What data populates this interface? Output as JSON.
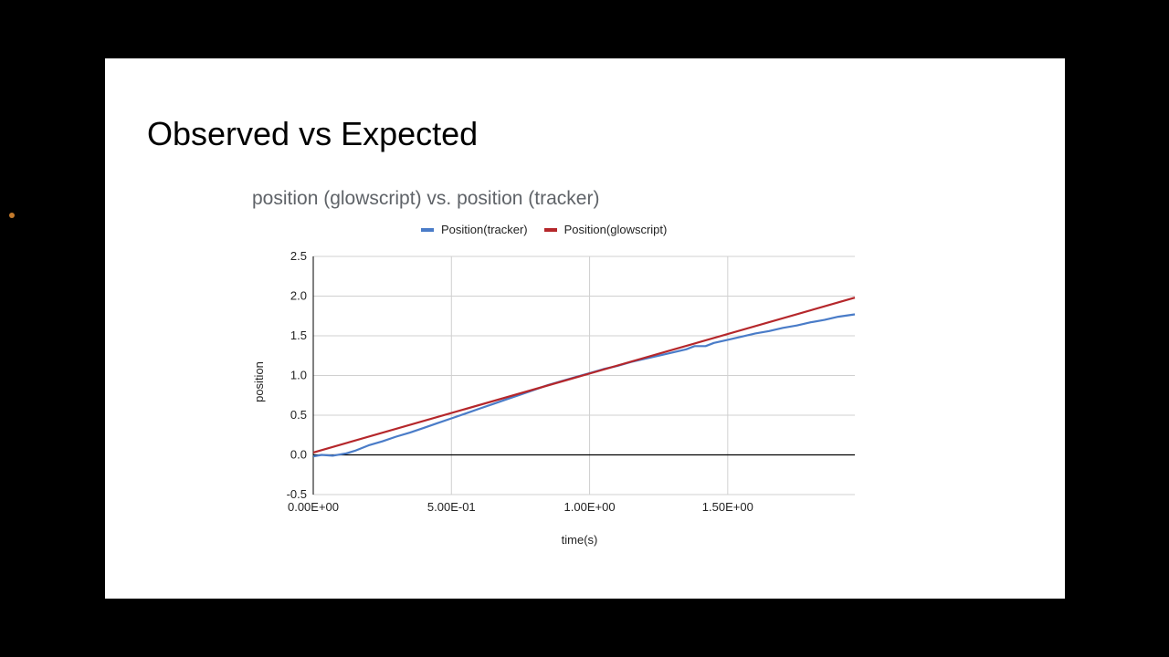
{
  "slide": {
    "title": "Observed vs Expected"
  },
  "chart_data": {
    "type": "line",
    "title": "position (glowscript) vs. position (tracker)",
    "xlabel": "time(s)",
    "ylabel": "position",
    "xlim": [
      0,
      1.96
    ],
    "ylim": [
      -0.5,
      2.5
    ],
    "x_ticks": [
      {
        "value": 0,
        "label": "0.00E+00"
      },
      {
        "value": 0.5,
        "label": "5.00E-01"
      },
      {
        "value": 1.0,
        "label": "1.00E+00"
      },
      {
        "value": 1.5,
        "label": "1.50E+00"
      }
    ],
    "y_ticks": [
      {
        "value": 2.5,
        "label": "2.5"
      },
      {
        "value": 2.0,
        "label": "2.0"
      },
      {
        "value": 1.5,
        "label": "1.5"
      },
      {
        "value": 1.0,
        "label": "1.0"
      },
      {
        "value": 0.5,
        "label": "0.5"
      },
      {
        "value": 0.0,
        "label": "0.0"
      },
      {
        "value": -0.5,
        "label": "-0.5"
      }
    ],
    "grid": true,
    "legend_position": "top",
    "series": [
      {
        "name": "Position(tracker)",
        "color": "#4a7cc8",
        "points": [
          [
            0.0,
            -0.02
          ],
          [
            0.03,
            0.0
          ],
          [
            0.07,
            -0.01
          ],
          [
            0.12,
            0.02
          ],
          [
            0.15,
            0.05
          ],
          [
            0.2,
            0.12
          ],
          [
            0.25,
            0.17
          ],
          [
            0.3,
            0.23
          ],
          [
            0.35,
            0.28
          ],
          [
            0.4,
            0.34
          ],
          [
            0.45,
            0.4
          ],
          [
            0.5,
            0.46
          ],
          [
            0.55,
            0.52
          ],
          [
            0.6,
            0.58
          ],
          [
            0.65,
            0.64
          ],
          [
            0.7,
            0.7
          ],
          [
            0.75,
            0.76
          ],
          [
            0.8,
            0.82
          ],
          [
            0.85,
            0.88
          ],
          [
            0.9,
            0.93
          ],
          [
            0.95,
            0.98
          ],
          [
            1.0,
            1.03
          ],
          [
            1.05,
            1.08
          ],
          [
            1.1,
            1.12
          ],
          [
            1.15,
            1.17
          ],
          [
            1.2,
            1.21
          ],
          [
            1.25,
            1.25
          ],
          [
            1.3,
            1.29
          ],
          [
            1.35,
            1.33
          ],
          [
            1.38,
            1.37
          ],
          [
            1.42,
            1.37
          ],
          [
            1.45,
            1.41
          ],
          [
            1.5,
            1.45
          ],
          [
            1.55,
            1.49
          ],
          [
            1.6,
            1.53
          ],
          [
            1.65,
            1.56
          ],
          [
            1.7,
            1.6
          ],
          [
            1.75,
            1.63
          ],
          [
            1.8,
            1.67
          ],
          [
            1.85,
            1.7
          ],
          [
            1.9,
            1.74
          ],
          [
            1.96,
            1.77
          ]
        ]
      },
      {
        "name": "Position(glowscript)",
        "color": "#b5272b",
        "points": [
          [
            0.0,
            0.03
          ],
          [
            1.96,
            1.98
          ]
        ]
      }
    ]
  }
}
